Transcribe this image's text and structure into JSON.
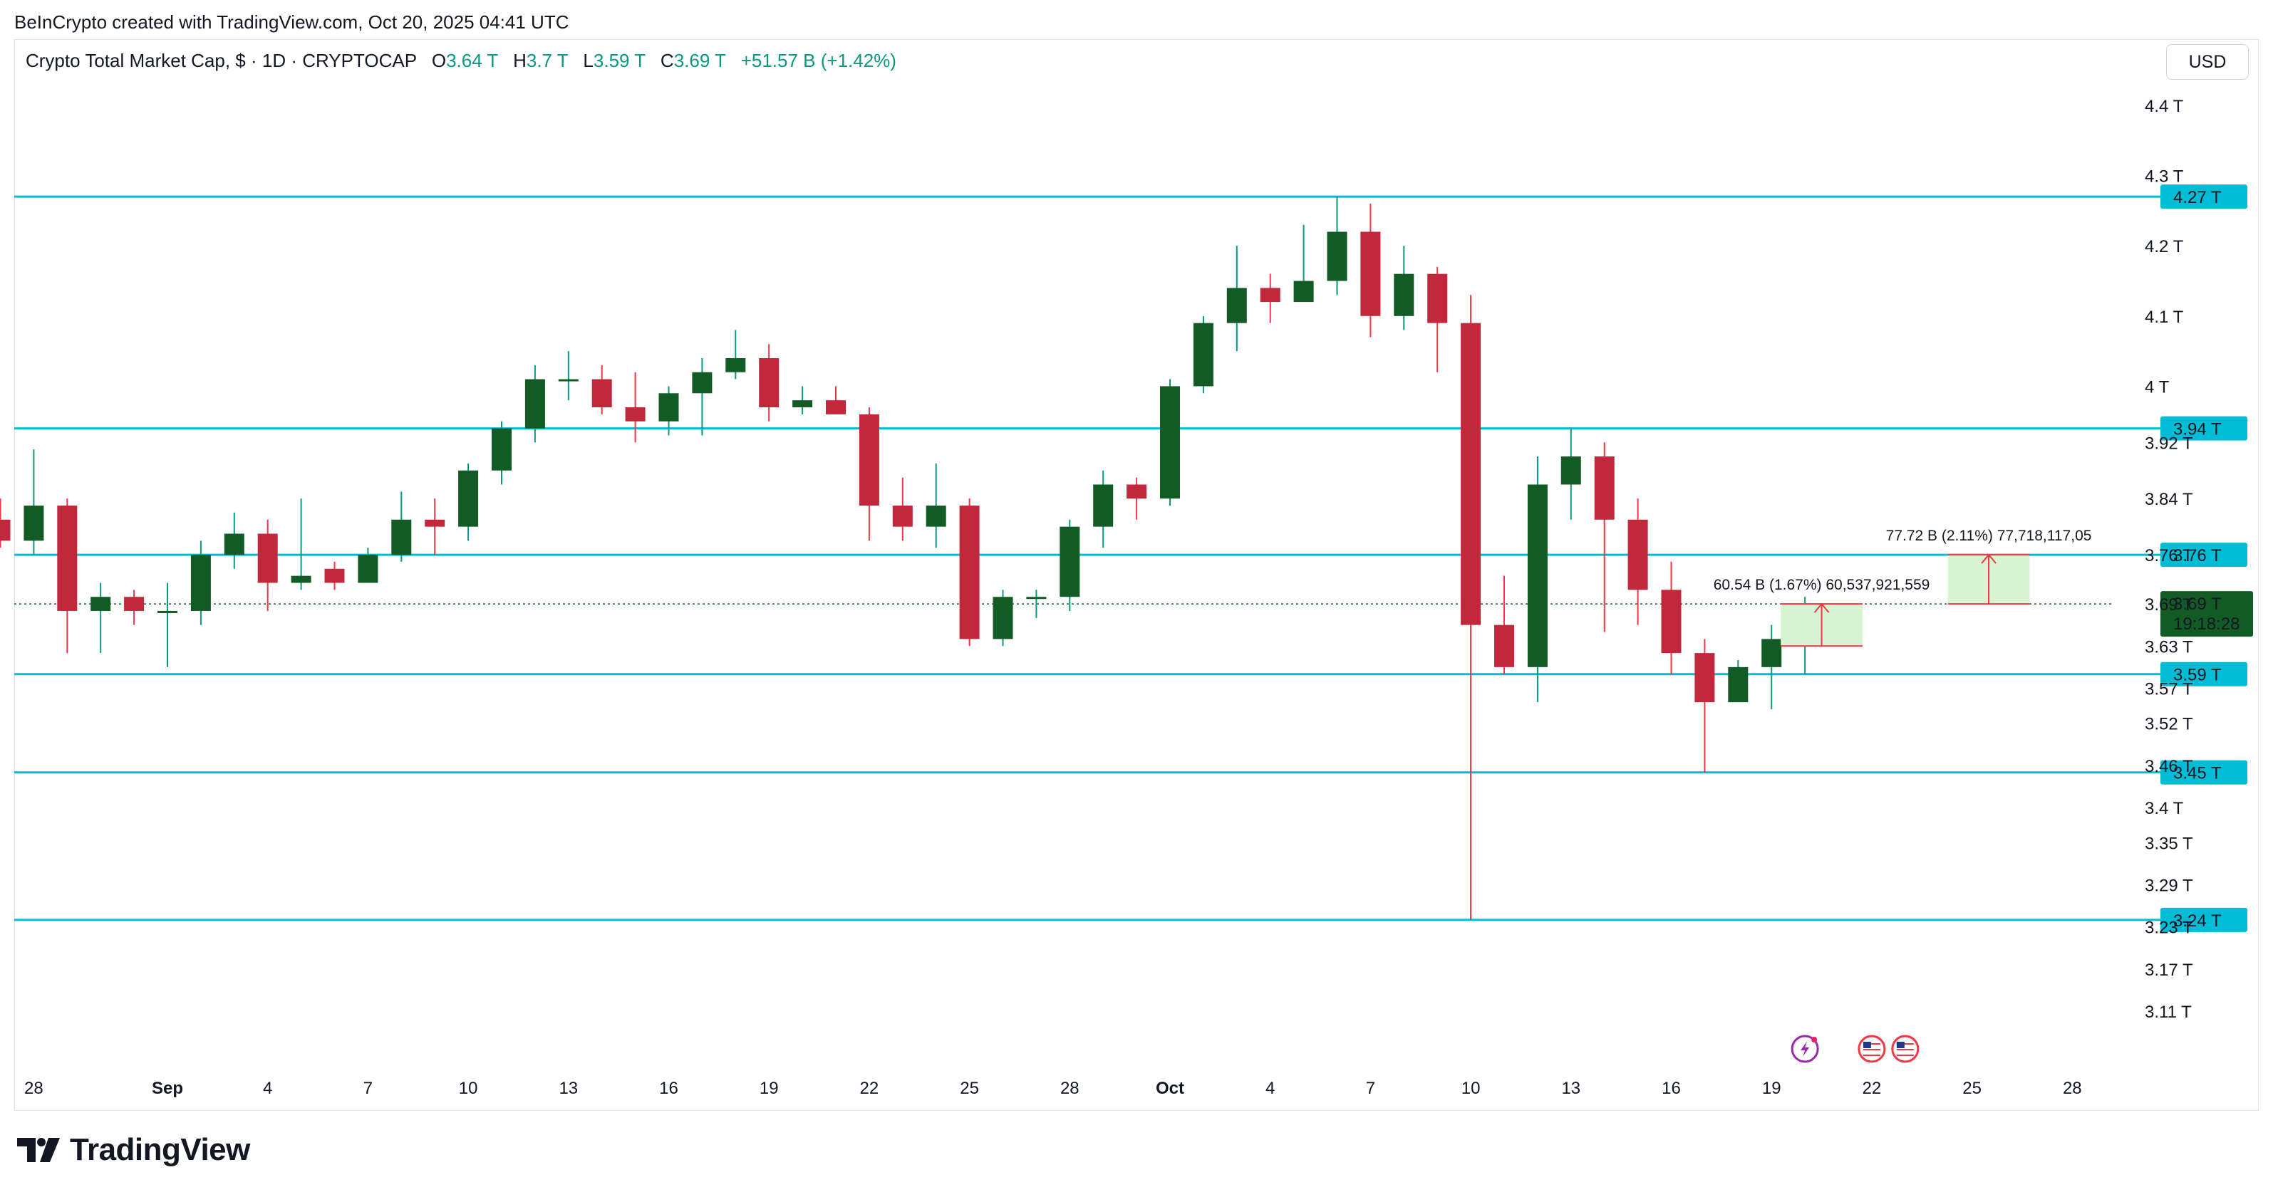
{
  "header": {
    "credit": "BeInCrypto created with TradingView.com, Oct 20, 2025 04:41 UTC"
  },
  "legend": {
    "symbol": "Crypto Total Market Cap, $ · 1D · CRYPTOCAP",
    "open_label": "O",
    "open": "3.64 T",
    "high_label": "H",
    "high": "3.7 T",
    "low_label": "L",
    "low": "3.59 T",
    "close_label": "C",
    "close": "3.69 T",
    "change": "+51.57 B (+1.42%)"
  },
  "currency": "USD",
  "footer": {
    "brand": "TradingView"
  },
  "colors": {
    "up": "#135b25",
    "down": "#c1283b",
    "up_wick": "#089981",
    "down_wick": "#f23645",
    "level_line": "#00bcd4",
    "measure_fill": "#d7f5d2"
  },
  "chart_data": {
    "type": "candlestick",
    "unit": "T",
    "ylim": [
      3.06,
      4.47
    ],
    "x_ticks": [
      "28",
      "Sep",
      "4",
      "7",
      "10",
      "13",
      "16",
      "19",
      "22",
      "25",
      "28",
      "Oct",
      "4",
      "7",
      "10",
      "13",
      "16",
      "19",
      "22",
      "25",
      "28"
    ],
    "x_tick_dates": [
      "2025-08-28",
      "2025-09-01",
      "2025-09-04",
      "2025-09-07",
      "2025-09-10",
      "2025-09-13",
      "2025-09-16",
      "2025-09-19",
      "2025-09-22",
      "2025-09-25",
      "2025-09-28",
      "2025-10-01",
      "2025-10-04",
      "2025-10-07",
      "2025-10-10",
      "2025-10-13",
      "2025-10-16",
      "2025-10-19",
      "2025-10-22",
      "2025-10-25",
      "2025-10-28"
    ],
    "y_ticks": [
      "4.4 T",
      "4.3 T",
      "4.2 T",
      "4.1 T",
      "4 T",
      "3.92 T",
      "3.84 T",
      "3.76 T",
      "3.69 T",
      "3.63 T",
      "3.57 T",
      "3.52 T",
      "3.46 T",
      "3.4 T",
      "3.35 T",
      "3.29 T",
      "3.23 T",
      "3.17 T",
      "3.11 T"
    ],
    "y_tick_values": [
      4.4,
      4.3,
      4.2,
      4.1,
      4.0,
      3.92,
      3.84,
      3.76,
      3.69,
      3.63,
      3.57,
      3.52,
      3.46,
      3.4,
      3.35,
      3.29,
      3.23,
      3.17,
      3.11
    ],
    "candles": [
      {
        "date": "2025-08-27",
        "o": 3.81,
        "h": 3.84,
        "l": 3.77,
        "c": 3.78
      },
      {
        "date": "2025-08-28",
        "o": 3.78,
        "h": 3.91,
        "l": 3.76,
        "c": 3.83
      },
      {
        "date": "2025-08-29",
        "o": 3.83,
        "h": 3.84,
        "l": 3.62,
        "c": 3.68
      },
      {
        "date": "2025-08-30",
        "o": 3.68,
        "h": 3.72,
        "l": 3.62,
        "c": 3.7
      },
      {
        "date": "2025-08-31",
        "o": 3.7,
        "h": 3.71,
        "l": 3.66,
        "c": 3.68
      },
      {
        "date": "2025-09-01",
        "o": 3.68,
        "h": 3.72,
        "l": 3.6,
        "c": 3.68
      },
      {
        "date": "2025-09-02",
        "o": 3.68,
        "h": 3.78,
        "l": 3.66,
        "c": 3.76
      },
      {
        "date": "2025-09-03",
        "o": 3.76,
        "h": 3.82,
        "l": 3.74,
        "c": 3.79
      },
      {
        "date": "2025-09-04",
        "o": 3.79,
        "h": 3.81,
        "l": 3.68,
        "c": 3.72
      },
      {
        "date": "2025-09-05",
        "o": 3.72,
        "h": 3.84,
        "l": 3.71,
        "c": 3.73
      },
      {
        "date": "2025-09-06",
        "o": 3.74,
        "h": 3.75,
        "l": 3.71,
        "c": 3.72
      },
      {
        "date": "2025-09-07",
        "o": 3.72,
        "h": 3.77,
        "l": 3.72,
        "c": 3.76
      },
      {
        "date": "2025-09-08",
        "o": 3.76,
        "h": 3.85,
        "l": 3.75,
        "c": 3.81
      },
      {
        "date": "2025-09-09",
        "o": 3.81,
        "h": 3.84,
        "l": 3.76,
        "c": 3.8
      },
      {
        "date": "2025-09-10",
        "o": 3.8,
        "h": 3.89,
        "l": 3.78,
        "c": 3.88
      },
      {
        "date": "2025-09-11",
        "o": 3.88,
        "h": 3.95,
        "l": 3.86,
        "c": 3.94
      },
      {
        "date": "2025-09-12",
        "o": 3.94,
        "h": 4.03,
        "l": 3.92,
        "c": 4.01
      },
      {
        "date": "2025-09-13",
        "o": 4.01,
        "h": 4.05,
        "l": 3.98,
        "c": 4.01
      },
      {
        "date": "2025-09-14",
        "o": 4.01,
        "h": 4.03,
        "l": 3.96,
        "c": 3.97
      },
      {
        "date": "2025-09-15",
        "o": 3.97,
        "h": 4.02,
        "l": 3.92,
        "c": 3.95
      },
      {
        "date": "2025-09-16",
        "o": 3.95,
        "h": 4.0,
        "l": 3.93,
        "c": 3.99
      },
      {
        "date": "2025-09-17",
        "o": 3.99,
        "h": 4.04,
        "l": 3.93,
        "c": 4.02
      },
      {
        "date": "2025-09-18",
        "o": 4.02,
        "h": 4.08,
        "l": 4.01,
        "c": 4.04
      },
      {
        "date": "2025-09-19",
        "o": 4.04,
        "h": 4.06,
        "l": 3.95,
        "c": 3.97
      },
      {
        "date": "2025-09-20",
        "o": 3.97,
        "h": 4.0,
        "l": 3.96,
        "c": 3.98
      },
      {
        "date": "2025-09-21",
        "o": 3.98,
        "h": 4.0,
        "l": 3.96,
        "c": 3.96
      },
      {
        "date": "2025-09-22",
        "o": 3.96,
        "h": 3.97,
        "l": 3.78,
        "c": 3.83
      },
      {
        "date": "2025-09-23",
        "o": 3.83,
        "h": 3.87,
        "l": 3.78,
        "c": 3.8
      },
      {
        "date": "2025-09-24",
        "o": 3.8,
        "h": 3.89,
        "l": 3.77,
        "c": 3.83
      },
      {
        "date": "2025-09-25",
        "o": 3.83,
        "h": 3.84,
        "l": 3.63,
        "c": 3.64
      },
      {
        "date": "2025-09-26",
        "o": 3.64,
        "h": 3.71,
        "l": 3.63,
        "c": 3.7
      },
      {
        "date": "2025-09-27",
        "o": 3.7,
        "h": 3.71,
        "l": 3.67,
        "c": 3.7
      },
      {
        "date": "2025-09-28",
        "o": 3.7,
        "h": 3.81,
        "l": 3.68,
        "c": 3.8
      },
      {
        "date": "2025-09-29",
        "o": 3.8,
        "h": 3.88,
        "l": 3.77,
        "c": 3.86
      },
      {
        "date": "2025-09-30",
        "o": 3.86,
        "h": 3.87,
        "l": 3.81,
        "c": 3.84
      },
      {
        "date": "2025-10-01",
        "o": 3.84,
        "h": 4.01,
        "l": 3.83,
        "c": 4.0
      },
      {
        "date": "2025-10-02",
        "o": 4.0,
        "h": 4.1,
        "l": 3.99,
        "c": 4.09
      },
      {
        "date": "2025-10-03",
        "o": 4.09,
        "h": 4.2,
        "l": 4.05,
        "c": 4.14
      },
      {
        "date": "2025-10-04",
        "o": 4.14,
        "h": 4.16,
        "l": 4.09,
        "c": 4.12
      },
      {
        "date": "2025-10-05",
        "o": 4.12,
        "h": 4.23,
        "l": 4.12,
        "c": 4.15
      },
      {
        "date": "2025-10-06",
        "o": 4.15,
        "h": 4.27,
        "l": 4.13,
        "c": 4.22
      },
      {
        "date": "2025-10-07",
        "o": 4.22,
        "h": 4.26,
        "l": 4.07,
        "c": 4.1
      },
      {
        "date": "2025-10-08",
        "o": 4.1,
        "h": 4.2,
        "l": 4.08,
        "c": 4.16
      },
      {
        "date": "2025-10-09",
        "o": 4.16,
        "h": 4.17,
        "l": 4.02,
        "c": 4.09
      },
      {
        "date": "2025-10-10",
        "o": 4.09,
        "h": 4.13,
        "l": 3.24,
        "c": 3.66
      },
      {
        "date": "2025-10-11",
        "o": 3.66,
        "h": 3.73,
        "l": 3.59,
        "c": 3.6
      },
      {
        "date": "2025-10-12",
        "o": 3.6,
        "h": 3.9,
        "l": 3.55,
        "c": 3.86
      },
      {
        "date": "2025-10-13",
        "o": 3.86,
        "h": 3.94,
        "l": 3.81,
        "c": 3.9
      },
      {
        "date": "2025-10-14",
        "o": 3.9,
        "h": 3.92,
        "l": 3.65,
        "c": 3.81
      },
      {
        "date": "2025-10-15",
        "o": 3.81,
        "h": 3.84,
        "l": 3.66,
        "c": 3.71
      },
      {
        "date": "2025-10-16",
        "o": 3.71,
        "h": 3.75,
        "l": 3.59,
        "c": 3.62
      },
      {
        "date": "2025-10-17",
        "o": 3.62,
        "h": 3.64,
        "l": 3.45,
        "c": 3.55
      },
      {
        "date": "2025-10-18",
        "o": 3.55,
        "h": 3.61,
        "l": 3.55,
        "c": 3.6
      },
      {
        "date": "2025-10-19",
        "o": 3.6,
        "h": 3.66,
        "l": 3.54,
        "c": 3.64
      },
      {
        "date": "2025-10-20",
        "o": 3.64,
        "h": 3.7,
        "l": 3.59,
        "c": 3.69
      }
    ],
    "levels": [
      {
        "value": 4.27,
        "label": "4.27 T"
      },
      {
        "value": 3.94,
        "label": "3.94 T"
      },
      {
        "value": 3.76,
        "label": "3.76 T"
      },
      {
        "value": 3.59,
        "label": "3.59 T"
      },
      {
        "value": 3.45,
        "label": "3.45 T"
      },
      {
        "value": 3.24,
        "label": "3.24 T"
      }
    ],
    "last_price": {
      "value": 3.69,
      "label": "3.69 T",
      "countdown": "19:18:28"
    },
    "measures": [
      {
        "from_date": "2025-10-20",
        "to_date": "2025-10-21",
        "from": 3.63,
        "to": 3.69,
        "text": "60.54 B (1.67%) 60,537,921,559"
      },
      {
        "from_date": "2025-10-25",
        "to_date": "2025-10-26",
        "from": 3.69,
        "to": 3.76,
        "text": "77.72 B (2.11%) 77,718,117,05"
      }
    ],
    "event_markers": [
      {
        "date": "2025-10-20",
        "icon": "lightning-event-icon"
      },
      {
        "date": "2025-10-22",
        "icon": "us-flag-icon"
      },
      {
        "date": "2025-10-23",
        "icon": "us-flag-icon"
      }
    ]
  }
}
